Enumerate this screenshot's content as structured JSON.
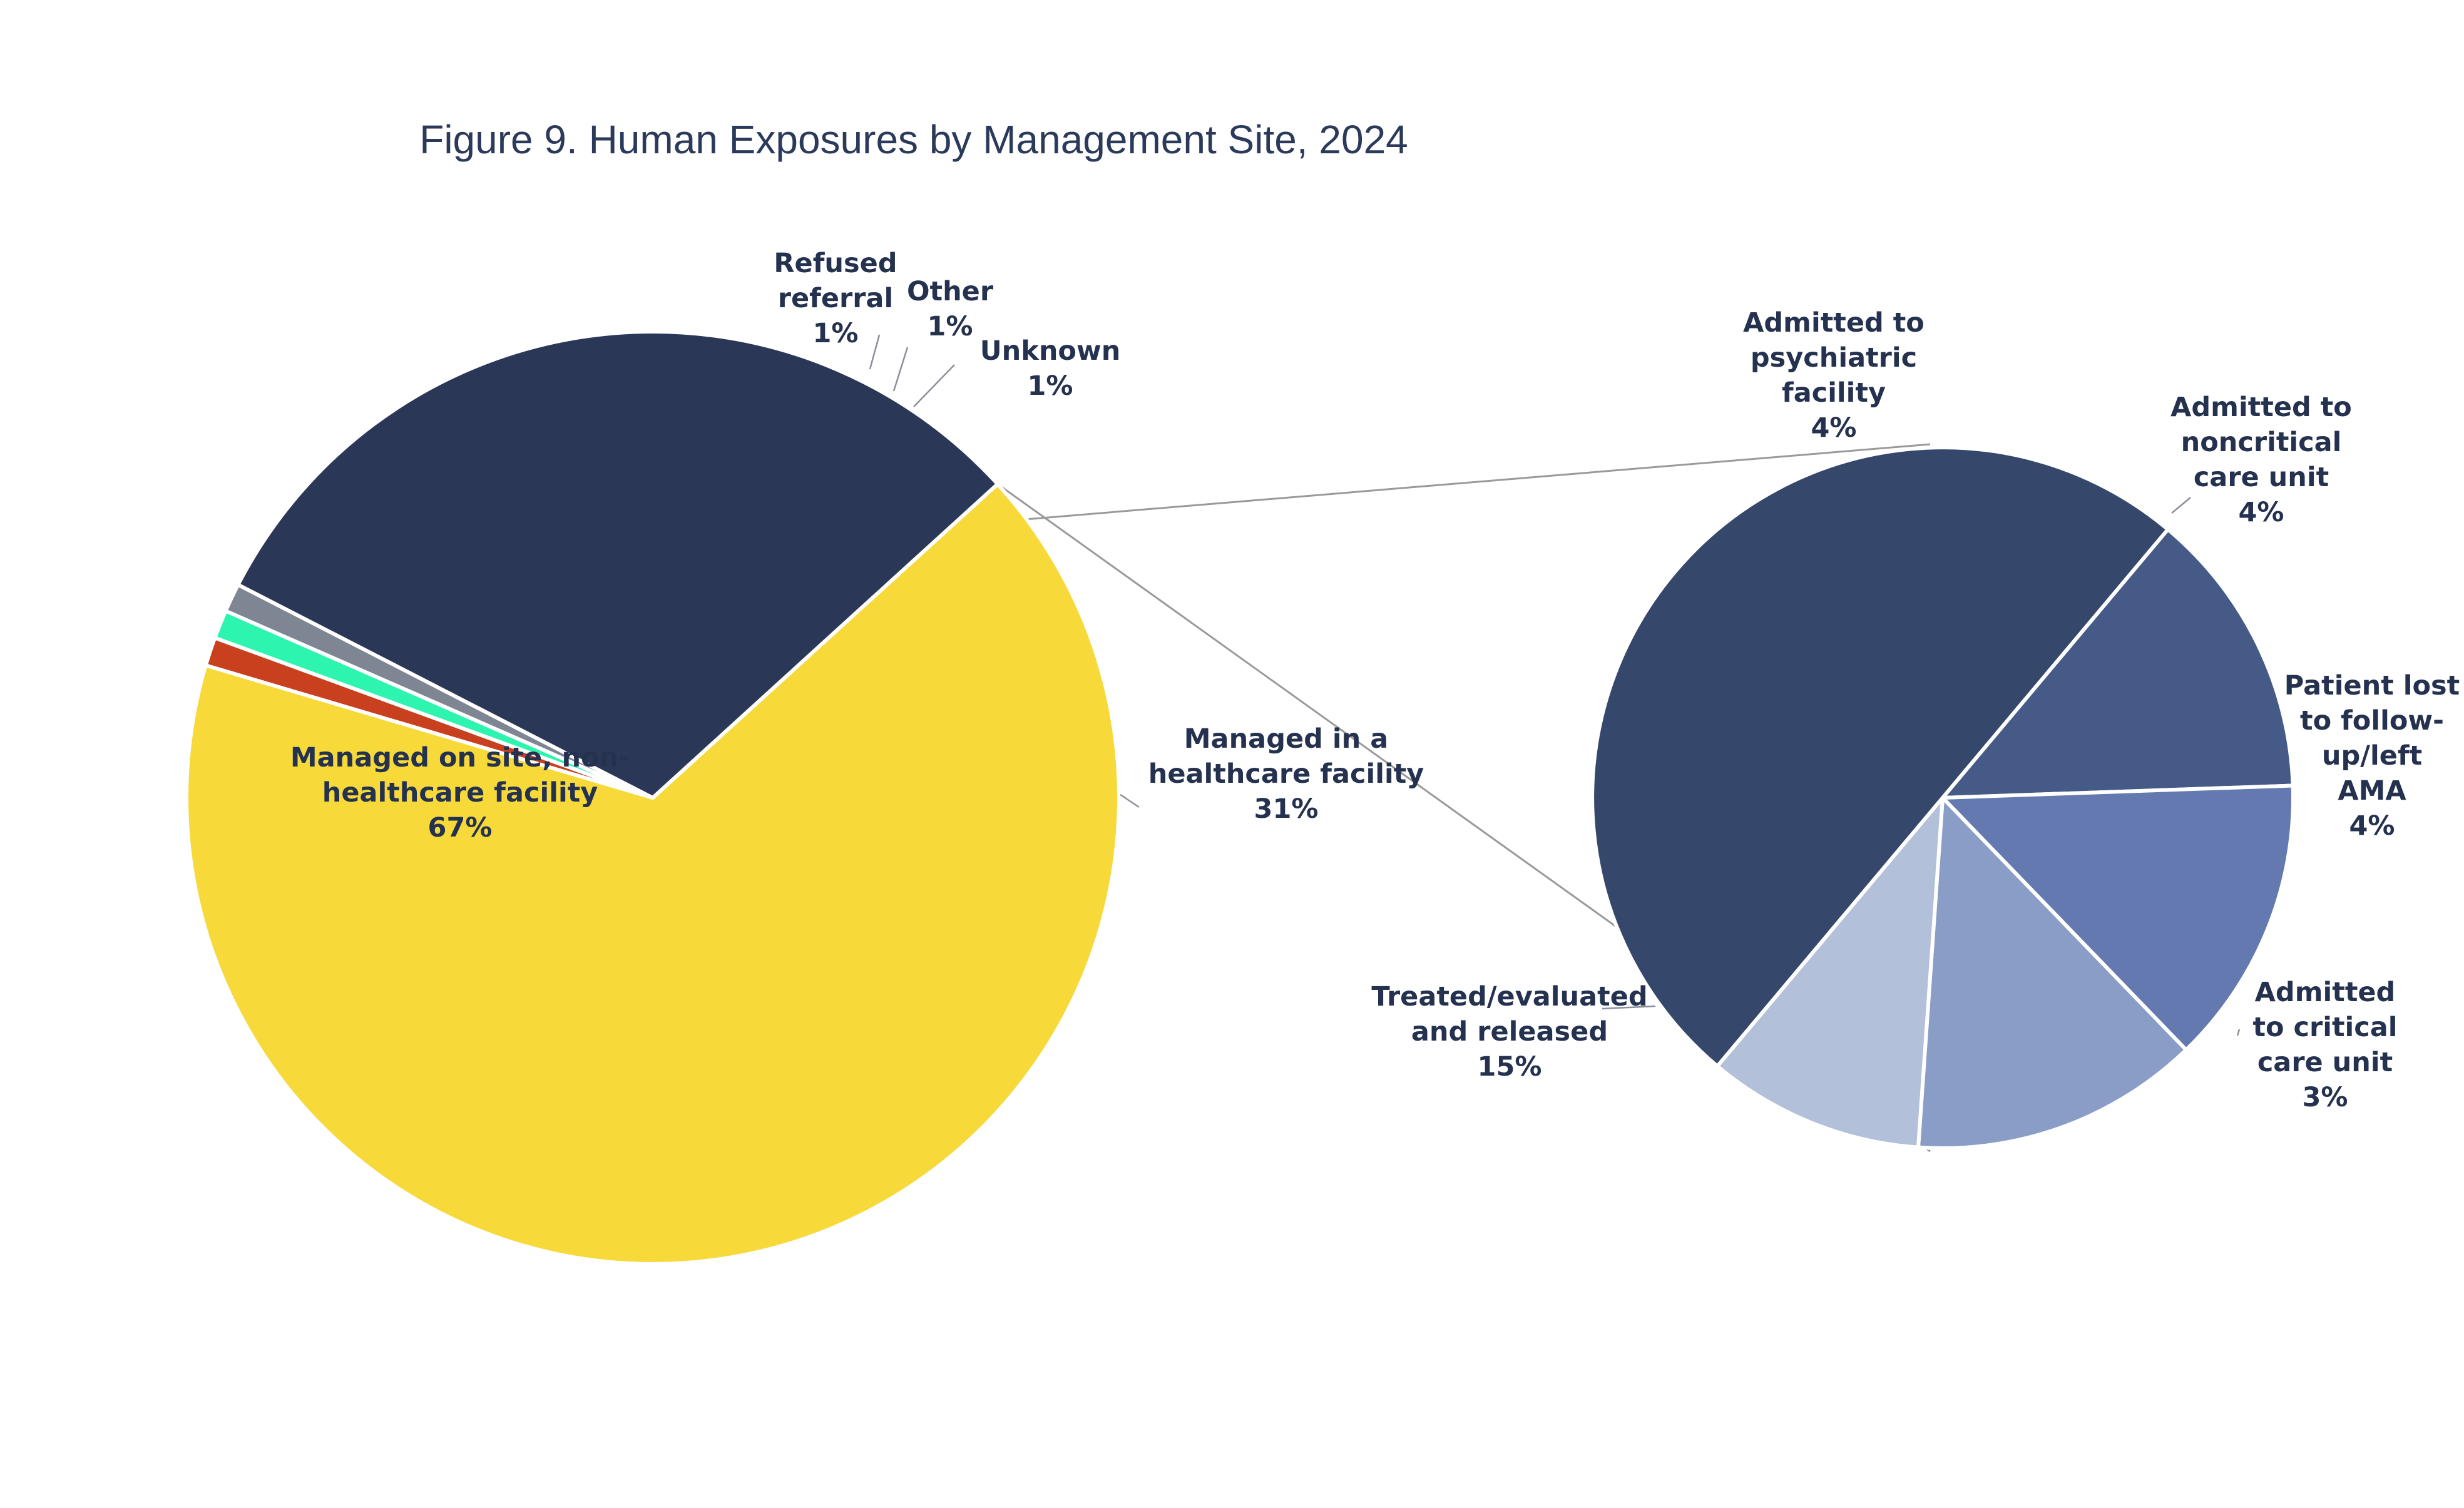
{
  "chart_data": [
    {
      "type": "pie",
      "title": "Figure 9. Human Exposures by Management Site, 2024",
      "slices": [
        {
          "label": "Managed on site, non-healthcare facility",
          "label_lines": [
            "Managed on site, non-",
            "healthcare facility"
          ],
          "value": 67,
          "value_label": "67%",
          "color": "#f7d93a"
        },
        {
          "label": "Refused referral",
          "label_lines": [
            "Refused",
            "referral"
          ],
          "value": 1,
          "value_label": "1%",
          "color": "#c8401e"
        },
        {
          "label": "Other",
          "label_lines": [
            "Other"
          ],
          "value": 1,
          "value_label": "1%",
          "color": "#2df5b0"
        },
        {
          "label": "Unknown",
          "label_lines": [
            "Unknown"
          ],
          "value": 1,
          "value_label": "1%",
          "color": "#7e8694"
        },
        {
          "label": "Managed in a healthcare facility",
          "label_lines": [
            "Managed in a",
            "healthcare facility"
          ],
          "value": 31,
          "value_label": "31%",
          "color": "#2b3756"
        }
      ]
    },
    {
      "type": "pie",
      "breakdown_of": "Managed in a healthcare facility",
      "slices": [
        {
          "label": "Treated/evaluated and released",
          "label_lines": [
            "Treated/evaluated",
            "and released"
          ],
          "value": 15,
          "value_label": "15%",
          "color": "#35476b"
        },
        {
          "label": "Admitted to psychiatric facility",
          "label_lines": [
            "Admitted to",
            "psychiatric",
            "facility"
          ],
          "value": 4,
          "value_label": "4%",
          "color": "#465a87"
        },
        {
          "label": "Admitted to noncritical care unit",
          "label_lines": [
            "Admitted to",
            "noncritical",
            "care unit"
          ],
          "value": 4,
          "value_label": "4%",
          "color": "#6379af"
        },
        {
          "label": "Patient lost to follow-up/left AMA",
          "label_lines": [
            "Patient lost",
            "to follow-",
            "up/left",
            "AMA"
          ],
          "value": 4,
          "value_label": "4%",
          "color": "#8a9dc6"
        },
        {
          "label": "Admitted to critical care unit",
          "label_lines": [
            "Admitted",
            "to critical",
            "care unit"
          ],
          "value": 3,
          "value_label": "3%",
          "color": "#b3c0da"
        }
      ]
    }
  ]
}
